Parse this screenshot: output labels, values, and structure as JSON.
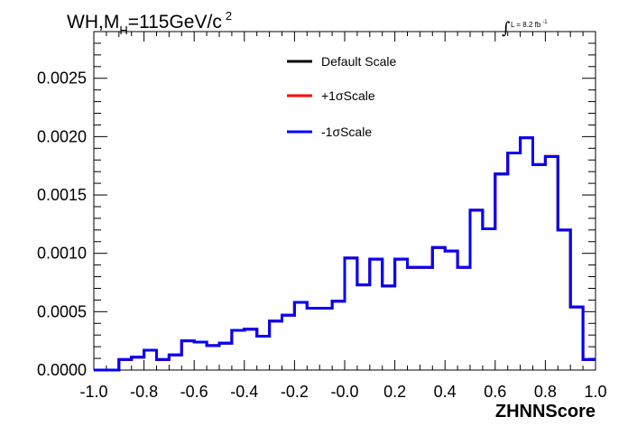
{
  "chart_data": {
    "type": "line",
    "title": "WH,M",
    "title_subscript": "H",
    "title_rest": "=115GeV/c",
    "title_superscript": "2",
    "luminosity_label": "L = 8.2 fb",
    "luminosity_superscript": "-1",
    "xlabel": "ZHNNScore",
    "ylabel": "",
    "xlim": [
      -1.0,
      1.0
    ],
    "ylim": [
      0.0,
      0.0029
    ],
    "grid": false,
    "legend_position": "top-center",
    "x_ticks": [
      "-1.0",
      "-0.8",
      "-0.6",
      "-0.4",
      "-0.2",
      "-0.0",
      "0.2",
      "0.4",
      "0.6",
      "0.8",
      "1.0"
    ],
    "y_ticks": [
      "0.0000",
      "0.0005",
      "0.0010",
      "0.0015",
      "0.0020",
      "0.0025"
    ],
    "bin_edges": [
      -1.0,
      -0.95,
      -0.9,
      -0.85,
      -0.8,
      -0.75,
      -0.7,
      -0.65,
      -0.6,
      -0.55,
      -0.5,
      -0.45,
      -0.4,
      -0.35,
      -0.3,
      -0.25,
      -0.2,
      -0.15,
      -0.1,
      -0.05,
      0.0,
      0.05,
      0.1,
      0.15,
      0.2,
      0.25,
      0.3,
      0.35,
      0.4,
      0.45,
      0.5,
      0.55,
      0.6,
      0.65,
      0.7,
      0.75,
      0.8,
      0.85,
      0.9,
      0.95,
      1.0
    ],
    "series": [
      {
        "name": "Default Scale",
        "color": "#000000",
        "values": [
          0.0,
          0.0,
          9e-05,
          0.00011,
          0.00017,
          9e-05,
          0.00013,
          0.00025,
          0.00024,
          0.00021,
          0.00023,
          0.00034,
          0.00035,
          0.00029,
          0.00042,
          0.00047,
          0.00058,
          0.00053,
          0.00053,
          0.00059,
          0.00096,
          0.00073,
          0.00095,
          0.00072,
          0.00095,
          0.00088,
          0.00088,
          0.00105,
          0.00102,
          0.00088,
          0.00137,
          0.00121,
          0.00168,
          0.00186,
          0.00199,
          0.00176,
          0.00183,
          0.0012,
          0.00054,
          9e-05,
          0.0
        ]
      },
      {
        "name": "+1σScale",
        "color": "#ff0000",
        "values": [
          0.0,
          0.0,
          9e-05,
          0.00011,
          0.00017,
          9e-05,
          0.00013,
          0.00025,
          0.00024,
          0.00021,
          0.00023,
          0.00034,
          0.00035,
          0.00029,
          0.00042,
          0.00047,
          0.00058,
          0.00053,
          0.00053,
          0.00059,
          0.00096,
          0.00073,
          0.00095,
          0.00072,
          0.00095,
          0.00088,
          0.00088,
          0.00105,
          0.00102,
          0.00088,
          0.00137,
          0.00121,
          0.00168,
          0.00186,
          0.00199,
          0.00176,
          0.00183,
          0.0012,
          0.00054,
          9e-05,
          0.0
        ]
      },
      {
        "name": "-1σScale",
        "color": "#0000ff",
        "values": [
          0.0,
          0.0,
          9e-05,
          0.00011,
          0.00017,
          9e-05,
          0.00013,
          0.00025,
          0.00024,
          0.00021,
          0.00023,
          0.00034,
          0.00035,
          0.00029,
          0.00042,
          0.00047,
          0.00058,
          0.00053,
          0.00053,
          0.00059,
          0.00096,
          0.00073,
          0.00095,
          0.00072,
          0.00095,
          0.00088,
          0.00088,
          0.00105,
          0.00102,
          0.00088,
          0.00137,
          0.00121,
          0.00168,
          0.00186,
          0.00199,
          0.00176,
          0.00183,
          0.0012,
          0.00054,
          9e-05,
          0.0
        ]
      }
    ]
  }
}
